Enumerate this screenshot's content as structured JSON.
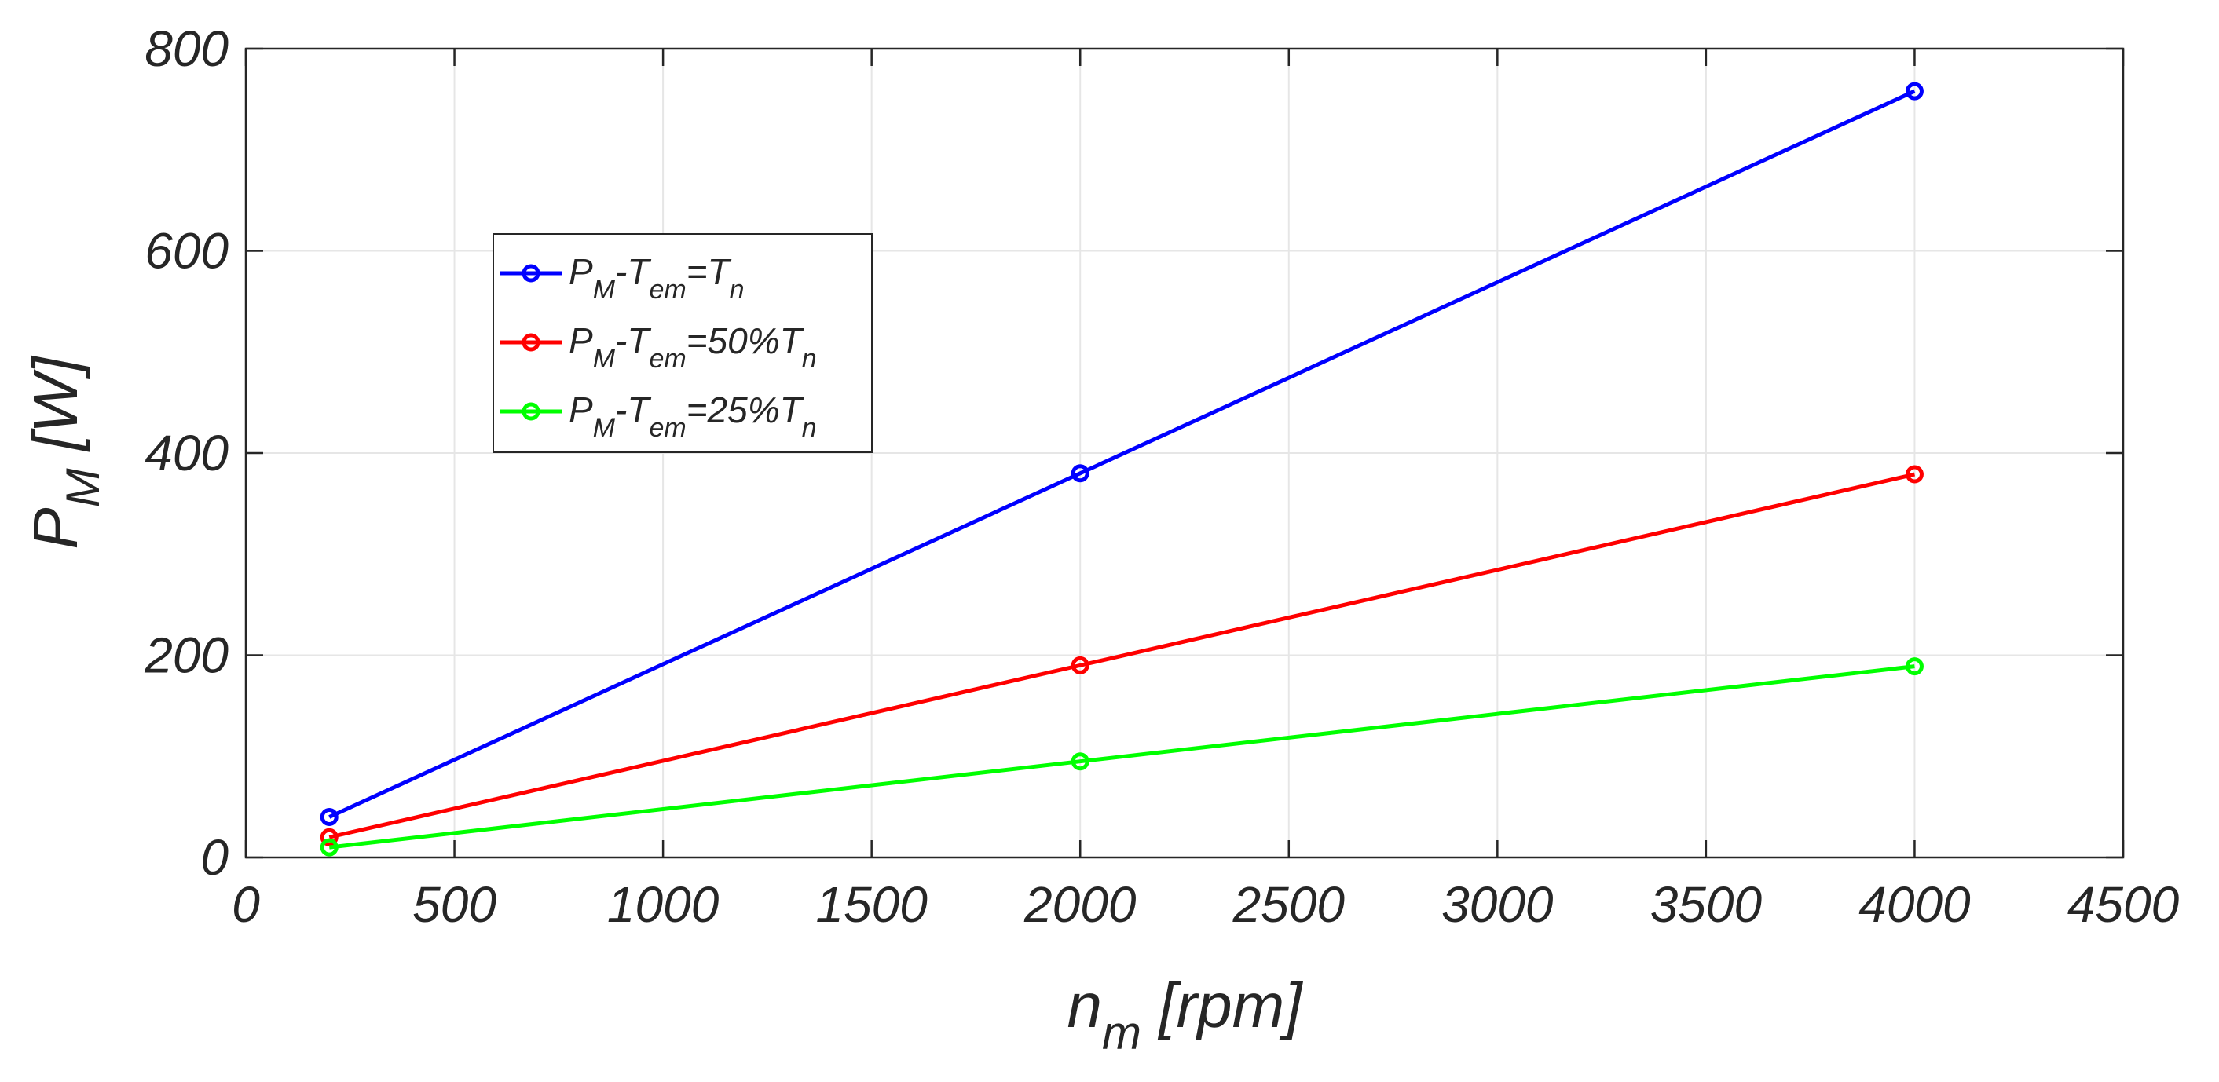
{
  "chart_data": {
    "type": "line",
    "title": "",
    "xlabel": {
      "main": "n",
      "sub": "m",
      "rest": " [rpm]"
    },
    "ylabel": {
      "main": "P",
      "sub": "M",
      "rest": " [W]"
    },
    "xlim": [
      0,
      4500
    ],
    "ylim": [
      0,
      800
    ],
    "xticks": [
      0,
      500,
      1000,
      1500,
      2000,
      2500,
      3000,
      3500,
      4000,
      4500
    ],
    "yticks": [
      0,
      200,
      400,
      600,
      800
    ],
    "grid": true,
    "legend_position": "upper-left-center",
    "x": [
      200,
      2000,
      4000
    ],
    "series": [
      {
        "name": "PM-Tem=Tn",
        "color": "#0000ff",
        "values": [
          40,
          380,
          758
        ],
        "legend": [
          {
            "t": "P"
          },
          {
            "t": "M",
            "sub": true
          },
          {
            "t": "-T"
          },
          {
            "t": "em",
            "sub": true
          },
          {
            "t": "=T"
          },
          {
            "t": "n",
            "sub": true
          }
        ]
      },
      {
        "name": "PM-Tem=50%Tn",
        "color": "#ff0000",
        "values": [
          20,
          190,
          379
        ],
        "legend": [
          {
            "t": "P"
          },
          {
            "t": "M",
            "sub": true
          },
          {
            "t": "-T"
          },
          {
            "t": "em",
            "sub": true
          },
          {
            "t": "=50%T"
          },
          {
            "t": "n",
            "sub": true
          }
        ]
      },
      {
        "name": "PM-Tem=25%Tn",
        "color": "#00ff00",
        "values": [
          10,
          95,
          189
        ],
        "legend": [
          {
            "t": "P"
          },
          {
            "t": "M",
            "sub": true
          },
          {
            "t": "-T"
          },
          {
            "t": "em",
            "sub": true
          },
          {
            "t": "=25%T"
          },
          {
            "t": "n",
            "sub": true
          }
        ]
      }
    ]
  }
}
